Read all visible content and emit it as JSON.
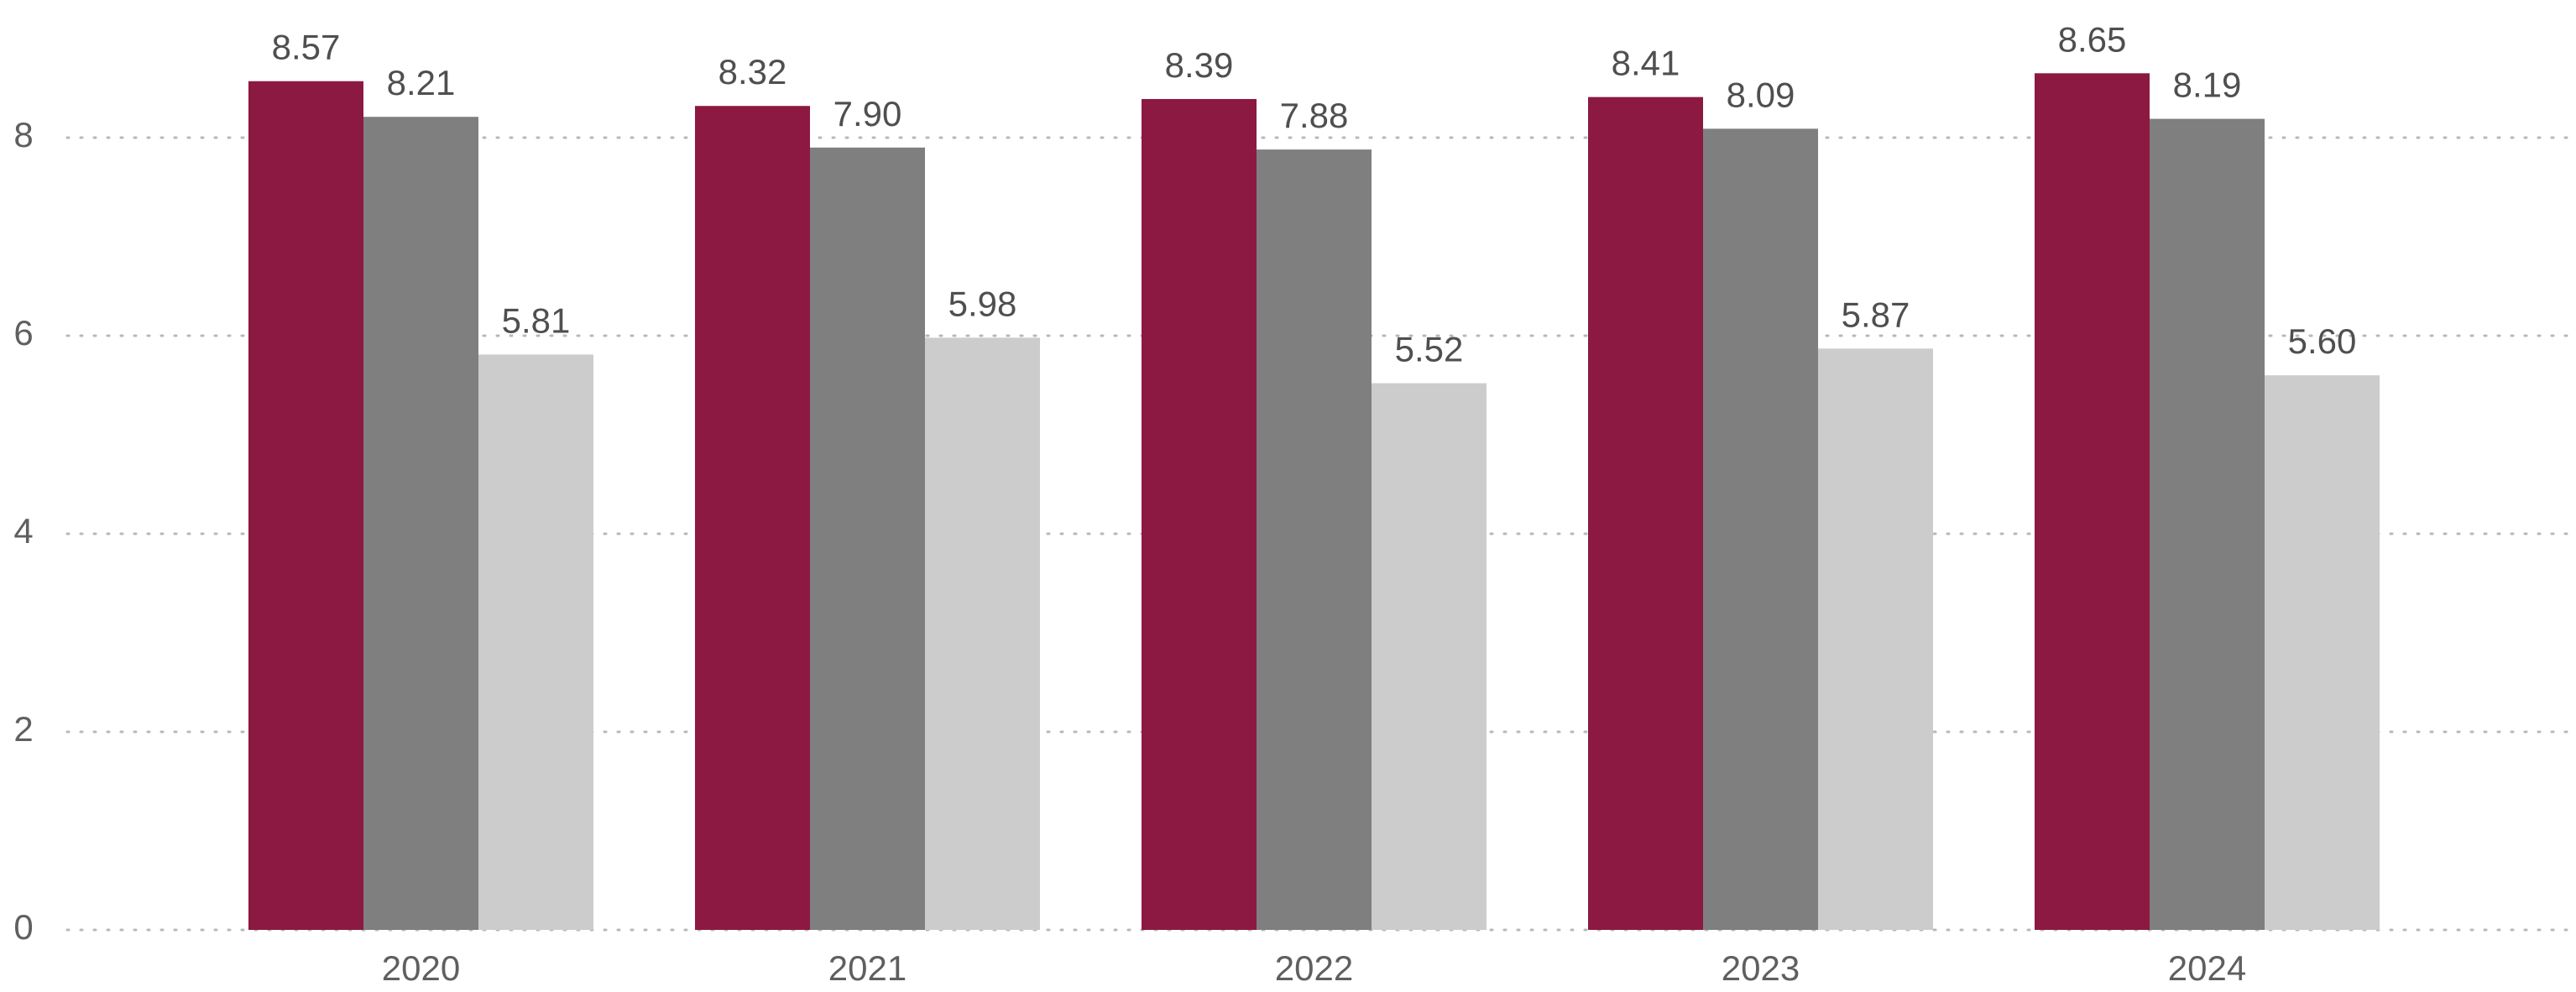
{
  "chart_data": {
    "type": "bar",
    "title": "",
    "xlabel": "",
    "ylabel": "",
    "categories": [
      "2020",
      "2021",
      "2022",
      "2023",
      "2024"
    ],
    "series": [
      {
        "color": "#8c1941",
        "values": [
          8.57,
          8.32,
          8.39,
          8.41,
          8.65
        ]
      },
      {
        "color": "#7f7f7f",
        "values": [
          8.21,
          7.9,
          7.88,
          8.09,
          8.19
        ]
      },
      {
        "color": "#cccccc",
        "values": [
          5.81,
          5.98,
          5.52,
          5.87,
          5.6
        ]
      }
    ],
    "value_labels": [
      [
        "8.57",
        "8.32",
        "8.39",
        "8.41",
        "8.65"
      ],
      [
        "8.21",
        "7.90",
        "7.88",
        "8.09",
        "8.19"
      ],
      [
        "5.81",
        "5.98",
        "5.52",
        "5.87",
        "5.60"
      ]
    ],
    "y_ticks": [
      0,
      2,
      4,
      6,
      8
    ],
    "y_tick_labels": [
      "0",
      "2",
      "4",
      "6",
      "8"
    ],
    "ylim": [
      0,
      9.35
    ],
    "grid": true,
    "legend": "none"
  }
}
